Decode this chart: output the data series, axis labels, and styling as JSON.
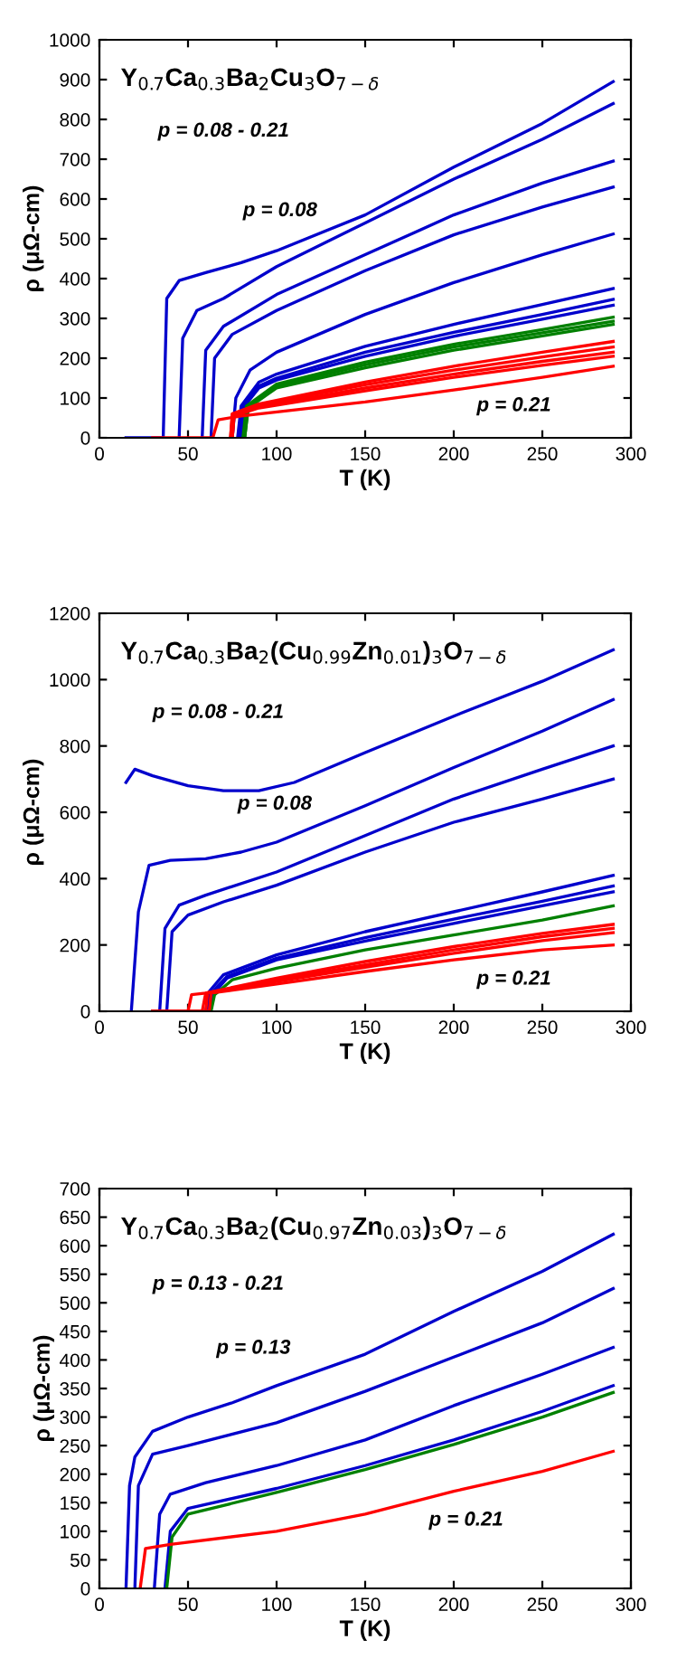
{
  "chart_data": [
    {
      "type": "line",
      "title": "Y$_{0.7}$Ca$_{0.3}$Ba$_{2}$Cu$_{3}$O$_{7−δ}$",
      "xlabel": "T (K)",
      "ylabel": "ρ (μΩ-cm)",
      "annotations": [
        "p = 0.08 - 0.21",
        "p = 0.08",
        "p = 0.21"
      ],
      "xlim": [
        0,
        300
      ],
      "xticks": [
        0,
        50,
        100,
        150,
        200,
        250,
        300
      ],
      "ylim": [
        0,
        1000
      ],
      "yticks": [
        0,
        100,
        200,
        300,
        400,
        500,
        600,
        700,
        800,
        900,
        1000
      ],
      "grid": false,
      "marker": "none",
      "line_style": "solid",
      "series": [
        {
          "color": "#0000cc",
          "x": [
            15,
            36,
            38,
            45,
            60,
            80,
            100,
            150,
            200,
            250,
            290
          ],
          "values": [
            0,
            0,
            350,
            395,
            415,
            440,
            470,
            560,
            680,
            790,
            895
          ]
        },
        {
          "color": "#0000cc",
          "x": [
            45,
            47,
            55,
            70,
            100,
            150,
            200,
            250,
            290
          ],
          "values": [
            0,
            250,
            320,
            350,
            430,
            540,
            650,
            750,
            840
          ]
        },
        {
          "color": "#0000cc",
          "x": [
            58,
            60,
            70,
            100,
            150,
            200,
            250,
            290
          ],
          "values": [
            0,
            220,
            280,
            360,
            460,
            560,
            640,
            695
          ]
        },
        {
          "color": "#0000cc",
          "x": [
            63,
            65,
            75,
            100,
            150,
            200,
            250,
            290
          ],
          "values": [
            0,
            200,
            260,
            320,
            420,
            510,
            580,
            630
          ]
        },
        {
          "color": "#0000cc",
          "x": [
            75,
            77,
            85,
            100,
            150,
            200,
            250,
            290
          ],
          "values": [
            0,
            100,
            170,
            215,
            310,
            390,
            460,
            512
          ]
        },
        {
          "color": "#0000cc",
          "x": [
            78,
            80,
            90,
            100,
            150,
            200,
            250,
            290
          ],
          "values": [
            0,
            80,
            140,
            160,
            230,
            285,
            335,
            375
          ]
        },
        {
          "color": "#0000cc",
          "x": [
            79,
            81,
            90,
            100,
            150,
            200,
            250,
            290
          ],
          "values": [
            0,
            80,
            130,
            150,
            215,
            265,
            310,
            348
          ]
        },
        {
          "color": "#0000cc",
          "x": [
            80,
            82,
            90,
            100,
            150,
            200,
            250,
            290
          ],
          "values": [
            0,
            80,
            125,
            145,
            205,
            255,
            298,
            333
          ]
        },
        {
          "color": "#008000",
          "x": [
            81,
            83,
            100,
            150,
            200,
            250,
            290
          ],
          "values": [
            0,
            80,
            135,
            190,
            235,
            272,
            303
          ]
        },
        {
          "color": "#008000",
          "x": [
            82,
            84,
            100,
            150,
            200,
            250,
            290
          ],
          "values": [
            0,
            80,
            130,
            183,
            228,
            264,
            293
          ]
        },
        {
          "color": "#008000",
          "x": [
            82,
            84,
            100,
            150,
            200,
            250,
            290
          ],
          "values": [
            0,
            75,
            125,
            176,
            220,
            256,
            285
          ]
        },
        {
          "color": "#ff0000",
          "x": [
            74,
            75,
            90,
            150,
            200,
            250,
            290
          ],
          "values": [
            0,
            60,
            85,
            140,
            180,
            215,
            242
          ]
        },
        {
          "color": "#ff0000",
          "x": [
            74,
            75,
            90,
            150,
            200,
            250,
            290
          ],
          "values": [
            0,
            60,
            82,
            133,
            170,
            203,
            228
          ]
        },
        {
          "color": "#ff0000",
          "x": [
            75,
            76,
            90,
            150,
            200,
            250,
            290
          ],
          "values": [
            0,
            55,
            78,
            125,
            160,
            192,
            215
          ]
        },
        {
          "color": "#ff0000",
          "x": [
            75,
            76,
            90,
            150,
            200,
            250,
            290
          ],
          "values": [
            0,
            55,
            75,
            118,
            152,
            182,
            205
          ]
        },
        {
          "color": "#ff0000",
          "x": [
            30,
            64,
            67,
            80,
            150,
            200,
            250,
            290
          ],
          "values": [
            0,
            0,
            45,
            55,
            90,
            120,
            152,
            180
          ]
        }
      ]
    },
    {
      "type": "line",
      "title": "Y$_{0.7}$Ca$_{0.3}$Ba$_{2}$(Cu$_{0.99}$Zn$_{0.01}$)$_{3}$O$_{7−δ}$",
      "xlabel": "T (K)",
      "ylabel": "ρ (μΩ-cm)",
      "annotations": [
        "p = 0.08 - 0.21",
        "p = 0.08",
        "p = 0.21"
      ],
      "xlim": [
        0,
        300
      ],
      "xticks": [
        0,
        50,
        100,
        150,
        200,
        250,
        300
      ],
      "ylim": [
        0,
        1200
      ],
      "yticks": [
        0,
        200,
        400,
        600,
        800,
        1000,
        1200
      ],
      "grid": false,
      "marker": "none",
      "line_style": "solid",
      "series": [
        {
          "color": "#0000cc",
          "x": [
            15,
            20,
            30,
            50,
            70,
            90,
            110,
            150,
            200,
            250,
            290
          ],
          "values": [
            690,
            730,
            710,
            680,
            665,
            665,
            690,
            780,
            890,
            995,
            1090
          ]
        },
        {
          "color": "#0000cc",
          "x": [
            18,
            22,
            28,
            40,
            60,
            80,
            100,
            150,
            200,
            250,
            290
          ],
          "values": [
            0,
            300,
            440,
            455,
            460,
            480,
            510,
            620,
            735,
            845,
            940
          ]
        },
        {
          "color": "#0000cc",
          "x": [
            34,
            37,
            45,
            60,
            100,
            150,
            200,
            250,
            290
          ],
          "values": [
            0,
            250,
            320,
            350,
            420,
            530,
            640,
            730,
            800
          ]
        },
        {
          "color": "#0000cc",
          "x": [
            38,
            41,
            50,
            70,
            100,
            150,
            200,
            250,
            290
          ],
          "values": [
            0,
            240,
            290,
            330,
            380,
            480,
            570,
            640,
            700
          ]
        },
        {
          "color": "#0000cc",
          "x": [
            60,
            62,
            70,
            100,
            150,
            200,
            250,
            290
          ],
          "values": [
            0,
            60,
            110,
            170,
            240,
            300,
            360,
            410
          ]
        },
        {
          "color": "#0000cc",
          "x": [
            61,
            63,
            72,
            100,
            150,
            200,
            250,
            290
          ],
          "values": [
            0,
            55,
            105,
            160,
            222,
            278,
            332,
            378
          ]
        },
        {
          "color": "#0000cc",
          "x": [
            62,
            64,
            72,
            100,
            150,
            200,
            250,
            290
          ],
          "values": [
            0,
            50,
            100,
            155,
            212,
            265,
            318,
            360
          ]
        },
        {
          "color": "#008000",
          "x": [
            63,
            65,
            75,
            100,
            150,
            200,
            250,
            290
          ],
          "values": [
            0,
            50,
            95,
            130,
            185,
            230,
            275,
            318
          ]
        },
        {
          "color": "#ff0000",
          "x": [
            30,
            50,
            52,
            60,
            100,
            150,
            200,
            250,
            290
          ],
          "values": [
            0,
            0,
            50,
            55,
            100,
            150,
            195,
            235,
            262
          ]
        },
        {
          "color": "#ff0000",
          "x": [
            30,
            58,
            60,
            100,
            150,
            200,
            250,
            290
          ],
          "values": [
            0,
            0,
            55,
            95,
            140,
            185,
            225,
            250
          ]
        },
        {
          "color": "#ff0000",
          "x": [
            30,
            60,
            61,
            100,
            150,
            200,
            250,
            290
          ],
          "values": [
            0,
            0,
            55,
            90,
            133,
            175,
            213,
            237
          ]
        },
        {
          "color": "#ff0000",
          "x": [
            30,
            62,
            63,
            100,
            150,
            200,
            250,
            290
          ],
          "values": [
            0,
            0,
            55,
            82,
            120,
            155,
            185,
            200
          ]
        }
      ]
    },
    {
      "type": "line",
      "title": "Y$_{0.7}$Ca$_{0.3}$Ba$_{2}$(Cu$_{0.97}$Zn$_{0.03}$)$_{3}$O$_{7−δ}$",
      "xlabel": "T (K)",
      "ylabel": "ρ (μΩ-cm)",
      "annotations": [
        "p = 0.13 - 0.21",
        "p = 0.13",
        "p = 0.21"
      ],
      "xlim": [
        0,
        300
      ],
      "xticks": [
        0,
        50,
        100,
        150,
        200,
        250,
        300
      ],
      "ylim": [
        0,
        700
      ],
      "yticks": [
        0,
        50,
        100,
        150,
        200,
        250,
        300,
        350,
        400,
        450,
        500,
        550,
        600,
        650,
        700
      ],
      "grid": false,
      "marker": "none",
      "line_style": "solid",
      "series": [
        {
          "color": "#0000cc",
          "x": [
            15,
            17,
            20,
            30,
            50,
            75,
            100,
            150,
            200,
            250,
            290
          ],
          "values": [
            0,
            180,
            230,
            275,
            300,
            325,
            355,
            410,
            485,
            555,
            620
          ]
        },
        {
          "color": "#0000cc",
          "x": [
            20,
            22,
            30,
            50,
            100,
            150,
            200,
            250,
            290
          ],
          "values": [
            0,
            180,
            235,
            250,
            290,
            345,
            405,
            465,
            525
          ]
        },
        {
          "color": "#0000cc",
          "x": [
            31,
            34,
            40,
            60,
            100,
            150,
            200,
            250,
            290
          ],
          "values": [
            0,
            130,
            165,
            185,
            215,
            260,
            320,
            375,
            422
          ]
        },
        {
          "color": "#0000cc",
          "x": [
            37,
            40,
            50,
            100,
            150,
            200,
            250,
            290
          ],
          "values": [
            0,
            100,
            140,
            175,
            215,
            260,
            310,
            355
          ]
        },
        {
          "color": "#008000",
          "x": [
            38,
            41,
            50,
            100,
            150,
            200,
            250,
            290
          ],
          "values": [
            0,
            90,
            130,
            168,
            208,
            252,
            300,
            343
          ]
        },
        {
          "color": "#ff0000",
          "x": [
            23,
            26,
            40,
            100,
            150,
            200,
            250,
            290
          ],
          "values": [
            0,
            70,
            77,
            100,
            130,
            170,
            205,
            240
          ]
        }
      ]
    }
  ]
}
